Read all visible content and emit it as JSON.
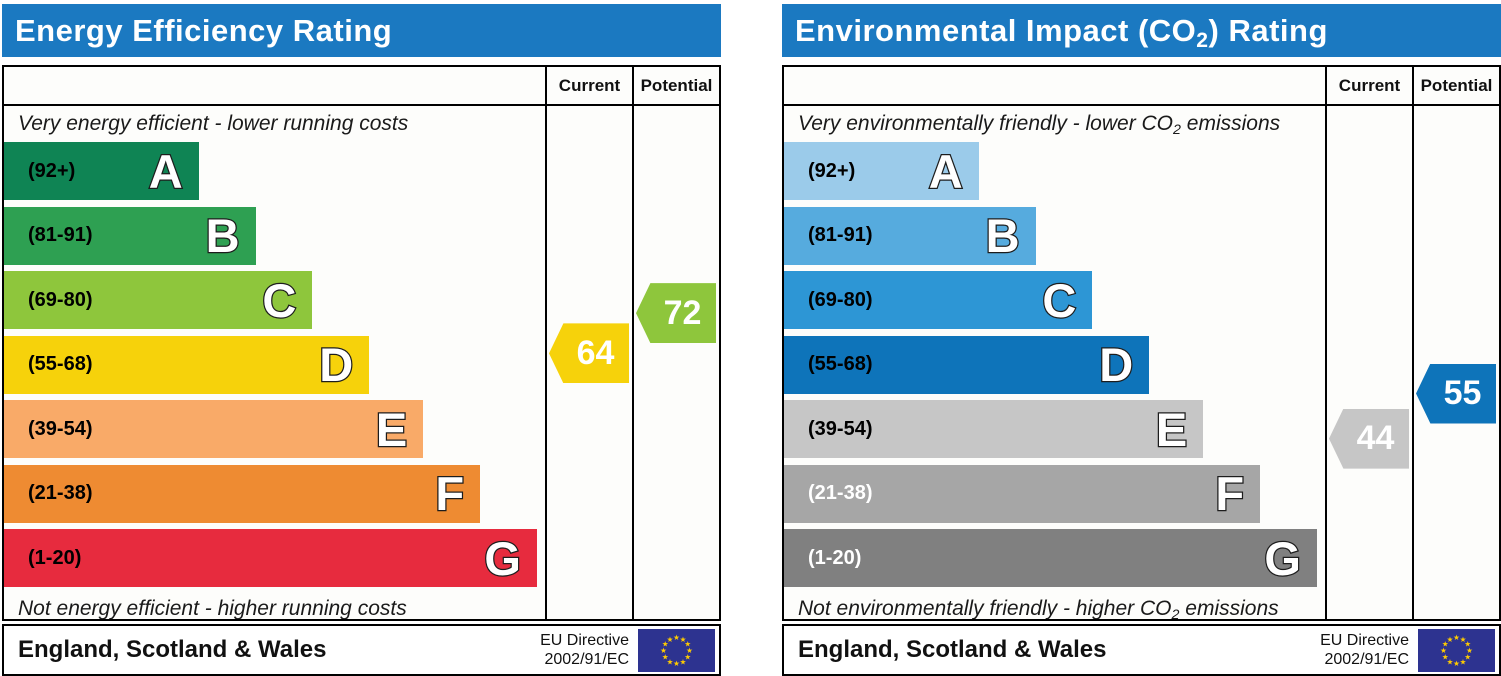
{
  "chart_data": [
    {
      "type": "epc-rating",
      "title_parts": {
        "pre": "Energy Efficiency Rating",
        "sub": "",
        "post": ""
      },
      "columns": {
        "current": "Current",
        "potential": "Potential"
      },
      "top_caption_parts": {
        "pre": "Very energy efficient - lower running costs",
        "sub": "",
        "post": ""
      },
      "bottom_caption_parts": {
        "pre": "Not energy efficient - higher running costs",
        "sub": "",
        "post": ""
      },
      "bands": [
        {
          "letter": "A",
          "range_label": "(92+)",
          "min": 92,
          "max": 100,
          "width_pct": 36,
          "color": "#0f8454",
          "label_color": "#000000"
        },
        {
          "letter": "B",
          "range_label": "(81-91)",
          "min": 81,
          "max": 91,
          "width_pct": 46.5,
          "color": "#2ea052",
          "label_color": "#000000"
        },
        {
          "letter": "C",
          "range_label": "(69-80)",
          "min": 69,
          "max": 80,
          "width_pct": 57,
          "color": "#8ec63c",
          "label_color": "#000000"
        },
        {
          "letter": "D",
          "range_label": "(55-68)",
          "min": 55,
          "max": 68,
          "width_pct": 67.5,
          "color": "#f6d20b",
          "label_color": "#000000"
        },
        {
          "letter": "E",
          "range_label": "(39-54)",
          "min": 39,
          "max": 54,
          "width_pct": 77.5,
          "color": "#f9aa68",
          "label_color": "#000000"
        },
        {
          "letter": "F",
          "range_label": "(21-38)",
          "min": 21,
          "max": 38,
          "width_pct": 88,
          "color": "#ee8b32",
          "label_color": "#000000"
        },
        {
          "letter": "G",
          "range_label": "(1-20)",
          "min": 1,
          "max": 20,
          "width_pct": 98.5,
          "color": "#e72b3e",
          "label_color": "#000000"
        }
      ],
      "current": {
        "value": 64,
        "band": "D"
      },
      "potential": {
        "value": 72,
        "band": "C"
      },
      "footer": {
        "region": "England, Scotland & Wales",
        "directive_line1": "EU Directive",
        "directive_line2": "2002/91/EC"
      }
    },
    {
      "type": "epc-rating",
      "title_parts": {
        "pre": "Environmental Impact (CO",
        "sub": "2",
        "post": ") Rating"
      },
      "columns": {
        "current": "Current",
        "potential": "Potential"
      },
      "top_caption_parts": {
        "pre": "Very environmentally friendly - lower CO",
        "sub": "2",
        "post": " emissions"
      },
      "bottom_caption_parts": {
        "pre": "Not environmentally friendly - higher CO",
        "sub": "2",
        "post": " emissions"
      },
      "bands": [
        {
          "letter": "A",
          "range_label": "(92+)",
          "min": 92,
          "max": 100,
          "width_pct": 36,
          "color": "#9bcbea",
          "label_color": "#000000"
        },
        {
          "letter": "B",
          "range_label": "(81-91)",
          "min": 81,
          "max": 91,
          "width_pct": 46.5,
          "color": "#56abde",
          "label_color": "#000000"
        },
        {
          "letter": "C",
          "range_label": "(69-80)",
          "min": 69,
          "max": 80,
          "width_pct": 57,
          "color": "#2d96d5",
          "label_color": "#000000"
        },
        {
          "letter": "D",
          "range_label": "(55-68)",
          "min": 55,
          "max": 68,
          "width_pct": 67.5,
          "color": "#0e74ba",
          "label_color": "#000000"
        },
        {
          "letter": "E",
          "range_label": "(39-54)",
          "min": 39,
          "max": 54,
          "width_pct": 77.5,
          "color": "#c6c6c6",
          "label_color": "#000000"
        },
        {
          "letter": "F",
          "range_label": "(21-38)",
          "min": 21,
          "max": 38,
          "width_pct": 88,
          "color": "#a6a6a6",
          "label_color": "#ffffff"
        },
        {
          "letter": "G",
          "range_label": "(1-20)",
          "min": 1,
          "max": 20,
          "width_pct": 98.5,
          "color": "#808080",
          "label_color": "#ffffff"
        }
      ],
      "current": {
        "value": 44,
        "band": "E"
      },
      "potential": {
        "value": 55,
        "band": "D"
      },
      "footer": {
        "region": "England, Scotland & Wales",
        "directive_line1": "EU Directive",
        "directive_line2": "2002/91/EC"
      }
    }
  ],
  "theme": {
    "header_bg": "#1b79c1",
    "header_text": "#ffffff",
    "border": "#000000",
    "flag_bg": "#2d3390",
    "flag_star": "#ffcc00"
  }
}
